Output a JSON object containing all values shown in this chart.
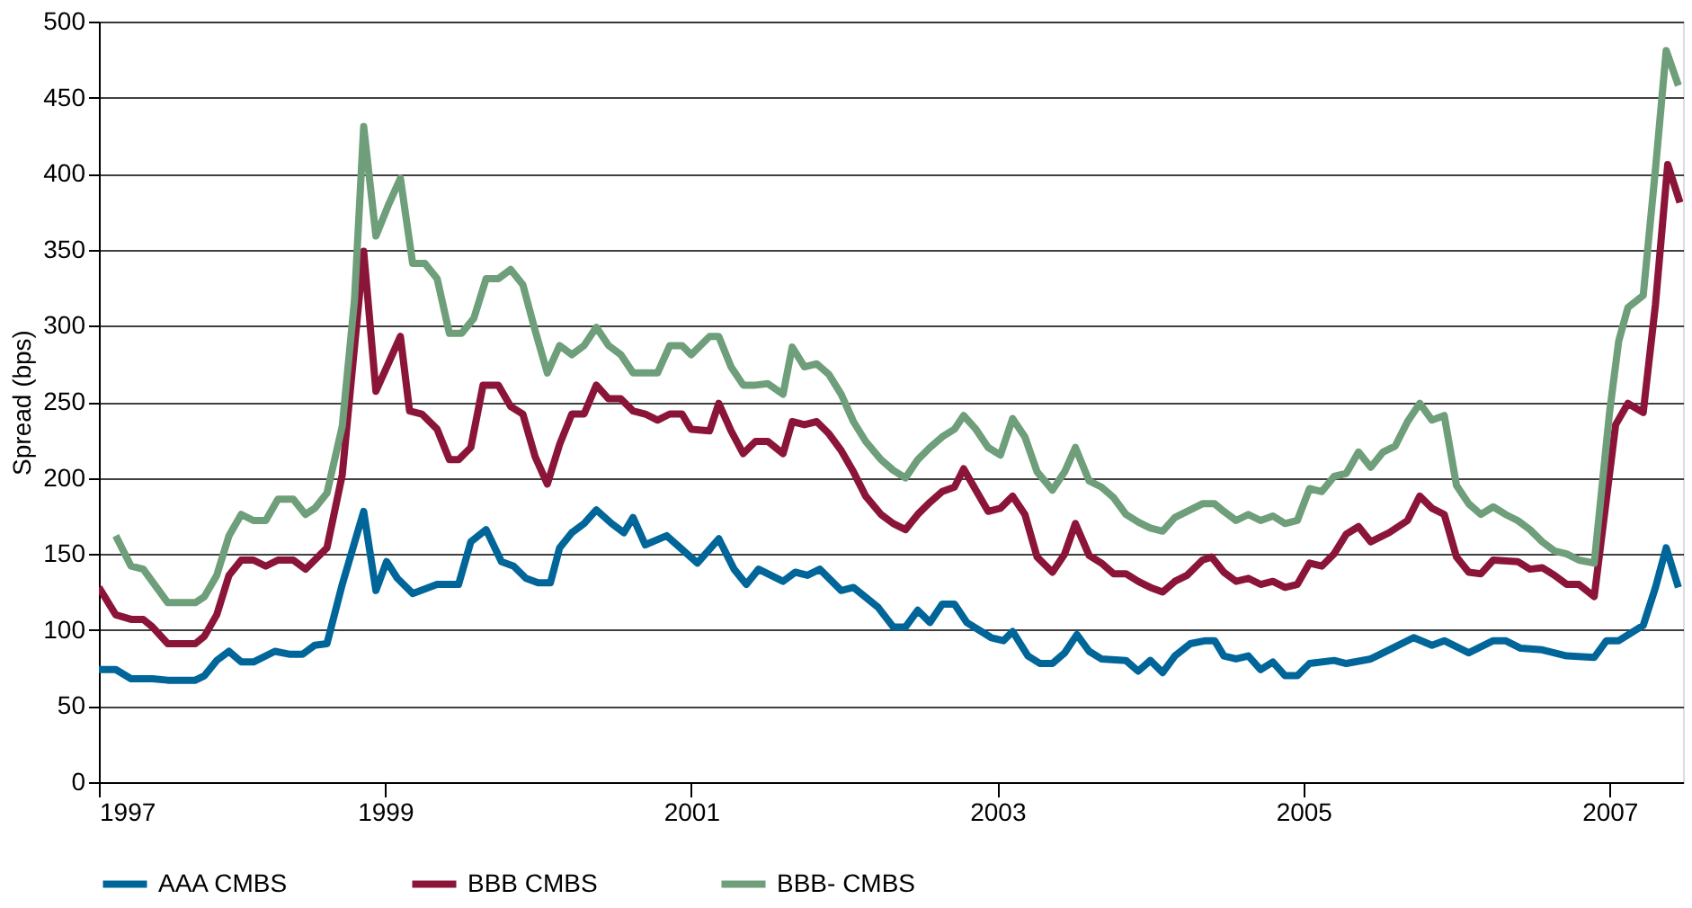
{
  "chart_data": {
    "type": "line",
    "ylabel": "Spread (bps)",
    "xlim": [
      1997.13,
      2007.48
    ],
    "xticks": [
      {
        "value": 1997.13,
        "label": "1997"
      },
      1999,
      2001,
      2003,
      2005,
      2007
    ],
    "ylim": [
      0,
      500
    ],
    "yticks": [
      0,
      50,
      100,
      150,
      200,
      250,
      300,
      350,
      400,
      450,
      500
    ],
    "grid": "y",
    "legend": "bottom",
    "line_style": "solid",
    "marker": "none",
    "series": [
      {
        "name": "AAA CMBS",
        "color": "#006699",
        "x": [
          1997.13,
          1997.24,
          1997.34,
          1997.48,
          1997.58,
          1997.76,
          1997.82,
          1997.9,
          1997.98,
          1998.06,
          1998.14,
          1998.28,
          1998.38,
          1998.46,
          1998.54,
          1998.62,
          1998.72,
          1998.86,
          1998.94,
          1999.01,
          1999.08,
          1999.18,
          1999.34,
          1999.48,
          1999.56,
          1999.66,
          1999.76,
          1999.84,
          1999.92,
          2000.0,
          2000.08,
          2000.14,
          2000.22,
          2000.3,
          2000.38,
          2000.48,
          2000.56,
          2000.62,
          2000.7,
          2000.84,
          2001.04,
          2001.18,
          2001.28,
          2001.36,
          2001.44,
          2001.6,
          2001.68,
          2001.76,
          2001.84,
          2001.98,
          2002.06,
          2002.22,
          2002.32,
          2002.4,
          2002.48,
          2002.56,
          2002.64,
          2002.72,
          2002.8,
          2002.96,
          2003.04,
          2003.1,
          2003.2,
          2003.28,
          2003.36,
          2003.44,
          2003.52,
          2003.6,
          2003.68,
          2003.84,
          2003.92,
          2004.0,
          2004.08,
          2004.16,
          2004.26,
          2004.36,
          2004.42,
          2004.48,
          2004.56,
          2004.64,
          2004.72,
          2004.8,
          2004.88,
          2004.96,
          2005.04,
          2005.2,
          2005.28,
          2005.44,
          2005.56,
          2005.72,
          2005.84,
          2005.92,
          2006.08,
          2006.24,
          2006.32,
          2006.42,
          2006.56,
          2006.72,
          2006.9,
          2006.98,
          2007.06,
          2007.22,
          2007.3,
          2007.37,
          2007.45
        ],
        "values": [
          74,
          74,
          68,
          68,
          67,
          67,
          70,
          80,
          86,
          79,
          79,
          86,
          84,
          84,
          90,
          91,
          130,
          178,
          126,
          145,
          134,
          124,
          130,
          130,
          158,
          166,
          145,
          142,
          134,
          131,
          131,
          154,
          164,
          170,
          179,
          170,
          164,
          174,
          156,
          162,
          144,
          160,
          140,
          130,
          140,
          132,
          138,
          136,
          140,
          126,
          128,
          115,
          102,
          102,
          113,
          105,
          117,
          117,
          105,
          95,
          93,
          99,
          83,
          78,
          78,
          85,
          97,
          86,
          81,
          80,
          73,
          80,
          72,
          83,
          91,
          93,
          93,
          83,
          81,
          83,
          74,
          79,
          70,
          70,
          78,
          80,
          78,
          81,
          87,
          95,
          90,
          93,
          85,
          93,
          93,
          88,
          87,
          83,
          82,
          93,
          93,
          103,
          128,
          154,
          128
        ]
      },
      {
        "name": "BBB CMBS",
        "color": "#8b1538",
        "x": [
          1997.13,
          1997.24,
          1997.34,
          1997.42,
          1997.48,
          1997.58,
          1997.76,
          1997.82,
          1997.9,
          1997.98,
          1998.06,
          1998.14,
          1998.22,
          1998.3,
          1998.4,
          1998.48,
          1998.54,
          1998.62,
          1998.72,
          1998.86,
          1998.94,
          1999.1,
          1999.16,
          1999.24,
          1999.34,
          1999.42,
          1999.48,
          1999.56,
          1999.64,
          1999.74,
          1999.82,
          1999.9,
          1999.98,
          2000.06,
          2000.14,
          2000.22,
          2000.3,
          2000.38,
          2000.46,
          2000.54,
          2000.62,
          2000.7,
          2000.78,
          2000.86,
          2000.94,
          2001.0,
          2001.12,
          2001.18,
          2001.26,
          2001.34,
          2001.42,
          2001.5,
          2001.6,
          2001.66,
          2001.74,
          2001.82,
          2001.9,
          2001.98,
          2002.06,
          2002.14,
          2002.24,
          2002.32,
          2002.4,
          2002.48,
          2002.56,
          2002.64,
          2002.72,
          2002.78,
          2002.86,
          2002.94,
          2003.02,
          2003.1,
          2003.18,
          2003.26,
          2003.36,
          2003.44,
          2003.51,
          2003.6,
          2003.68,
          2003.76,
          2003.84,
          2003.92,
          2004.0,
          2004.08,
          2004.16,
          2004.24,
          2004.34,
          2004.4,
          2004.48,
          2004.56,
          2004.64,
          2004.72,
          2004.8,
          2004.88,
          2004.96,
          2005.04,
          2005.12,
          2005.2,
          2005.28,
          2005.36,
          2005.44,
          2005.56,
          2005.68,
          2005.76,
          2005.84,
          2005.92,
          2006.0,
          2006.08,
          2006.16,
          2006.24,
          2006.4,
          2006.48,
          2006.56,
          2006.64,
          2006.72,
          2006.8,
          2006.9,
          2007.04,
          2007.12,
          2007.22,
          2007.3,
          2007.38,
          2007.46
        ],
        "values": [
          128,
          110,
          107,
          107,
          102,
          91,
          91,
          96,
          110,
          136,
          146,
          146,
          142,
          146,
          146,
          140,
          146,
          154,
          202,
          349,
          257,
          293,
          244,
          242,
          232,
          212,
          212,
          220,
          261,
          261,
          247,
          242,
          214,
          196,
          222,
          242,
          242,
          261,
          252,
          252,
          244,
          242,
          238,
          242,
          242,
          232,
          231,
          249,
          231,
          216,
          224,
          224,
          216,
          237,
          235,
          237,
          229,
          218,
          204,
          188,
          176,
          170,
          166,
          176,
          184,
          191,
          194,
          206,
          192,
          178,
          180,
          188,
          176,
          148,
          138,
          150,
          170,
          149,
          144,
          137,
          137,
          132,
          128,
          125,
          132,
          136,
          146,
          148,
          138,
          132,
          134,
          130,
          132,
          128,
          130,
          144,
          142,
          150,
          163,
          168,
          158,
          164,
          172,
          188,
          180,
          176,
          148,
          138,
          137,
          146,
          145,
          140,
          141,
          136,
          130,
          130,
          122,
          235,
          249,
          243,
          314,
          406,
          381
        ]
      },
      {
        "name": "BBB- CMBS",
        "color": "#6e9e7a",
        "x": [
          1997.24,
          1997.34,
          1997.42,
          1997.58,
          1997.76,
          1997.82,
          1997.9,
          1997.98,
          1998.06,
          1998.14,
          1998.22,
          1998.3,
          1998.4,
          1998.48,
          1998.54,
          1998.62,
          1998.72,
          1998.8,
          1998.86,
          1998.94,
          1999.02,
          1999.1,
          1999.18,
          1999.26,
          1999.34,
          1999.42,
          1999.5,
          1999.58,
          1999.66,
          1999.74,
          1999.82,
          1999.9,
          1999.98,
          2000.06,
          2000.14,
          2000.22,
          2000.3,
          2000.38,
          2000.46,
          2000.54,
          2000.62,
          2000.78,
          2000.86,
          2000.94,
          2001.0,
          2001.12,
          2001.18,
          2001.26,
          2001.34,
          2001.42,
          2001.5,
          2001.6,
          2001.66,
          2001.74,
          2001.82,
          2001.9,
          2001.98,
          2002.06,
          2002.14,
          2002.24,
          2002.32,
          2002.4,
          2002.48,
          2002.56,
          2002.64,
          2002.72,
          2002.78,
          2002.86,
          2002.94,
          2003.02,
          2003.1,
          2003.18,
          2003.26,
          2003.36,
          2003.44,
          2003.51,
          2003.6,
          2003.68,
          2003.76,
          2003.84,
          2003.92,
          2004.0,
          2004.08,
          2004.16,
          2004.24,
          2004.34,
          2004.42,
          2004.48,
          2004.56,
          2004.64,
          2004.72,
          2004.8,
          2004.88,
          2004.96,
          2005.04,
          2005.12,
          2005.2,
          2005.28,
          2005.36,
          2005.44,
          2005.52,
          2005.6,
          2005.68,
          2005.76,
          2005.84,
          2005.92,
          2006.0,
          2006.08,
          2006.16,
          2006.24,
          2006.32,
          2006.4,
          2006.48,
          2006.56,
          2006.64,
          2006.72,
          2006.8,
          2006.9,
          2007.0,
          2007.06,
          2007.12,
          2007.22,
          2007.3,
          2007.37,
          2007.45
        ],
        "values": [
          162,
          142,
          140,
          118,
          118,
          122,
          136,
          162,
          176,
          172,
          172,
          186,
          186,
          176,
          180,
          190,
          234,
          317,
          431,
          359,
          379,
          397,
          341,
          341,
          331,
          295,
          295,
          305,
          331,
          331,
          337,
          327,
          297,
          269,
          287,
          281,
          287,
          299,
          287,
          281,
          269,
          269,
          287,
          287,
          281,
          293,
          293,
          273,
          261,
          261,
          262,
          255,
          286,
          273,
          275,
          268,
          255,
          237,
          224,
          212,
          205,
          200,
          212,
          220,
          227,
          232,
          241,
          232,
          220,
          215,
          239,
          227,
          204,
          192,
          204,
          220,
          198,
          194,
          187,
          176,
          171,
          167,
          165,
          174,
          178,
          183,
          183,
          178,
          172,
          176,
          172,
          175,
          170,
          172,
          193,
          191,
          201,
          203,
          217,
          207,
          217,
          221,
          237,
          249,
          238,
          241,
          195,
          183,
          176,
          181,
          176,
          172,
          166,
          158,
          152,
          150,
          146,
          144,
          243,
          290,
          312,
          320,
          403,
          481,
          458
        ]
      }
    ]
  }
}
